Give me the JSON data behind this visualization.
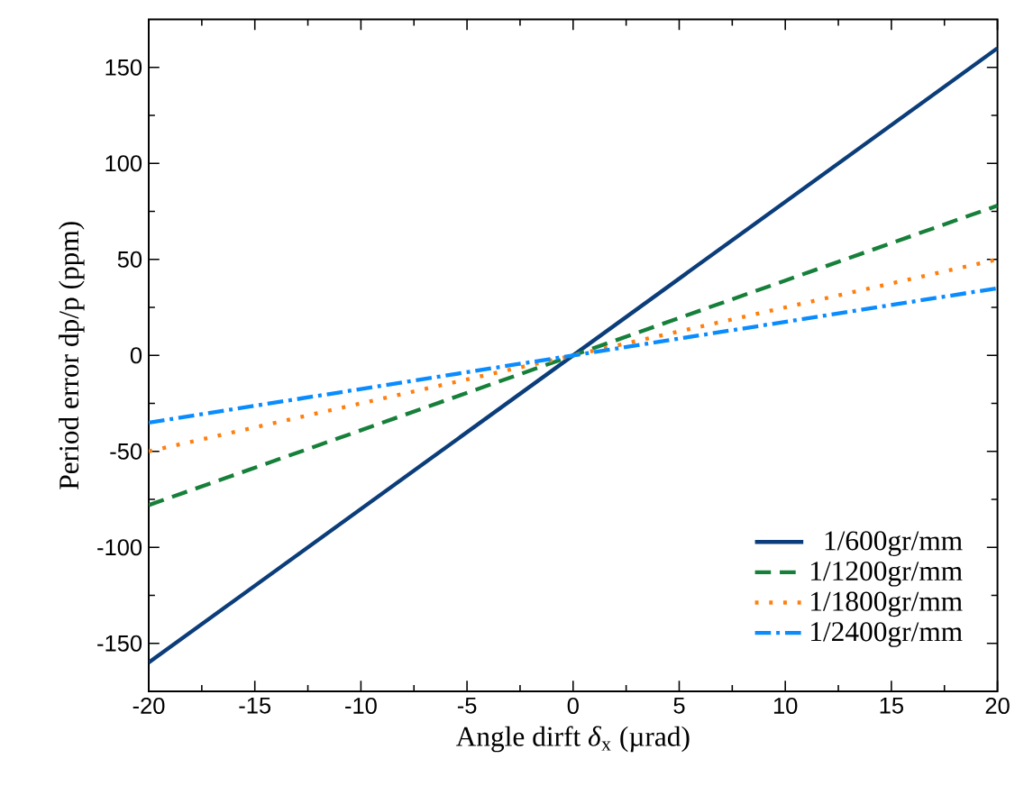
{
  "chart_data": {
    "type": "line",
    "xlabel": "Angle dirft *δ*$_{x}$ (µrad)",
    "ylabel": "Period error dp/p (ppm)",
    "x": [
      -20,
      0,
      20
    ],
    "xlim": [
      -20,
      20
    ],
    "ylim": [
      -175,
      175
    ],
    "xticks": [
      -20,
      -15,
      -10,
      -5,
      0,
      5,
      10,
      15,
      20
    ],
    "yticks": [
      -150,
      -100,
      -50,
      0,
      50,
      100,
      150
    ],
    "grid": false,
    "legend": "bottom right",
    "marker": "none",
    "series": [
      {
        "name": "1/600gr/mm",
        "color": "#0b3d7a",
        "line_style": "solid",
        "values": [
          -160,
          0,
          160
        ]
      },
      {
        "name": "1/1200gr/mm",
        "color": "#16803a",
        "line_style": "dashed",
        "values": [
          -78,
          0,
          78
        ]
      },
      {
        "name": "1/1800gr/mm",
        "color": "#ff7f0e",
        "line_style": "dotted",
        "values": [
          -50,
          0,
          50
        ]
      },
      {
        "name": "1/2400gr/mm",
        "color": "#0a8cff",
        "line_style": "dashdotted",
        "values": [
          -35,
          0,
          35
        ]
      }
    ]
  }
}
